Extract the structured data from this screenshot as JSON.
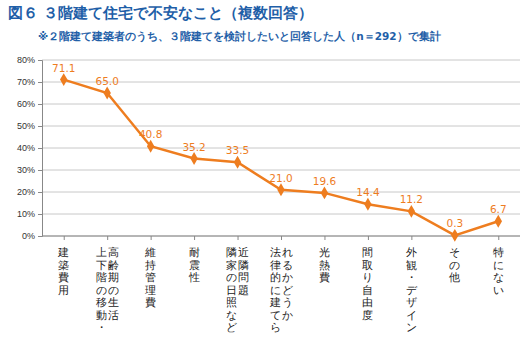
{
  "chart_data": {
    "type": "line",
    "title": "図６ ３階建て住宅で不安なこと（複数回答）",
    "subtitle": "※２階建て建築者のうち、３階建てを検討したいと回答した人（n＝292）で集計",
    "categories": [
      "建築費用",
      "上下階の移動・高齢期の生活",
      "維持管理費",
      "耐震性",
      "隣家の日照など近隣問題",
      "法律的に建てられるかどうか",
      "光熱費",
      "間取り自由度",
      "外観・デザイン",
      "その他",
      "特にない"
    ],
    "values": [
      71.1,
      65.0,
      40.8,
      35.2,
      33.5,
      21.0,
      19.6,
      14.4,
      11.2,
      0.3,
      6.7
    ],
    "value_labels": [
      "71.1",
      "65.0",
      "40.8",
      "35.2",
      "33.5",
      "21.0",
      "19.6",
      "14.4",
      "11.2",
      "0.3",
      "6.7"
    ],
    "color": "#ee7d1f",
    "marker": "diamond",
    "data_labels": true,
    "grid": true,
    "ylim": [
      0,
      80
    ],
    "yticks": [
      {
        "value": 0,
        "label": "0%"
      },
      {
        "value": 10,
        "label": "10%"
      },
      {
        "value": 20,
        "label": "20%"
      },
      {
        "value": 30,
        "label": "30%"
      },
      {
        "value": 40,
        "label": "40%"
      },
      {
        "value": 50,
        "label": "50%"
      },
      {
        "value": 60,
        "label": "60%"
      },
      {
        "value": 70,
        "label": "70%"
      },
      {
        "value": 80,
        "label": "80%"
      }
    ]
  }
}
